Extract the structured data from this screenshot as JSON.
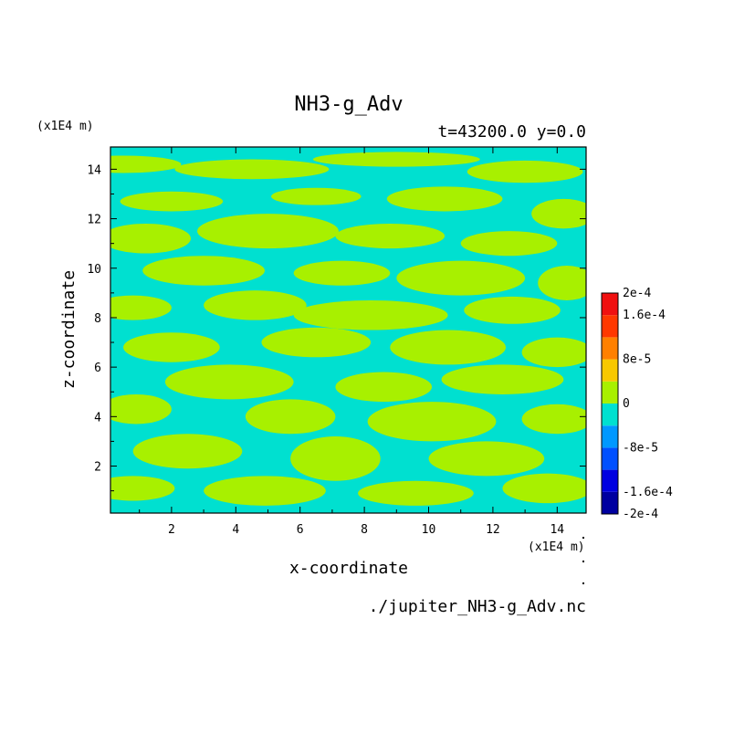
{
  "chart_data": {
    "type": "heatmap",
    "title": "NH3-g_Adv",
    "subtitle": "t=43200.0 y=0.0",
    "xlabel": "x-coordinate",
    "ylabel": "z-coordinate",
    "x_unit": "(x1E4 m)",
    "y_unit": "(x1E4 m)",
    "xlim": [
      0.1,
      14.9
    ],
    "ylim": [
      0.1,
      14.9
    ],
    "x_ticks": [
      "2",
      "4",
      "6",
      "8",
      "10",
      "12",
      "14"
    ],
    "x_tick_values": [
      2,
      4,
      6,
      8,
      10,
      12,
      14
    ],
    "y_ticks": [
      "2",
      "4",
      "6",
      "8",
      "10",
      "12",
      "14"
    ],
    "y_tick_values": [
      2,
      4,
      6,
      8,
      10,
      12,
      14
    ],
    "source": "./jupiter_NH3-g_Adv.nc",
    "colorbar": {
      "levels": [
        -0.0002,
        -0.00016,
        -0.00012,
        -8e-05,
        -4e-05,
        0,
        4e-05,
        8e-05,
        0.00012,
        0.00016,
        0.0002
      ],
      "colors": [
        "#0000a0",
        "#0000e0",
        "#0050ff",
        "#0098ff",
        "#00e0d0",
        "#a8f000",
        "#f8c800",
        "#ff8000",
        "#ff3800",
        "#f01010"
      ],
      "labels": [
        {
          "value": 0.0002,
          "text": "2e-4"
        },
        {
          "value": 0.00016,
          "text": "1.6e-4"
        },
        {
          "value": 8e-05,
          "text": "8e-5"
        },
        {
          "value": 0,
          "text": "0"
        },
        {
          "value": -8e-05,
          "text": "-8e-5"
        },
        {
          "value": -0.00016,
          "text": "-1.6e-4"
        },
        {
          "value": -0.0002,
          "text": "-2e-4"
        }
      ]
    },
    "field_classes": {
      "negative": {
        "range": [
          -4e-05,
          0
        ],
        "color": "#00e0d0"
      },
      "positive": {
        "range": [
          0,
          4e-05
        ],
        "color": "#a8f000"
      }
    },
    "regions_positive": [
      {
        "x": 0.5,
        "z": 14.2,
        "rx": 1.8,
        "ry": 0.35
      },
      {
        "x": 4.5,
        "z": 14.0,
        "rx": 2.4,
        "ry": 0.4
      },
      {
        "x": 9.0,
        "z": 14.4,
        "rx": 2.6,
        "ry": 0.3
      },
      {
        "x": 13.0,
        "z": 13.9,
        "rx": 1.8,
        "ry": 0.45
      },
      {
        "x": 2.0,
        "z": 12.7,
        "rx": 1.6,
        "ry": 0.4
      },
      {
        "x": 6.5,
        "z": 12.9,
        "rx": 1.4,
        "ry": 0.35
      },
      {
        "x": 10.5,
        "z": 12.8,
        "rx": 1.8,
        "ry": 0.5
      },
      {
        "x": 14.2,
        "z": 12.2,
        "rx": 1.0,
        "ry": 0.6
      },
      {
        "x": 1.2,
        "z": 11.2,
        "rx": 1.4,
        "ry": 0.6
      },
      {
        "x": 5.0,
        "z": 11.5,
        "rx": 2.2,
        "ry": 0.7
      },
      {
        "x": 8.8,
        "z": 11.3,
        "rx": 1.7,
        "ry": 0.5
      },
      {
        "x": 12.5,
        "z": 11.0,
        "rx": 1.5,
        "ry": 0.5
      },
      {
        "x": 3.0,
        "z": 9.9,
        "rx": 1.9,
        "ry": 0.6
      },
      {
        "x": 7.3,
        "z": 9.8,
        "rx": 1.5,
        "ry": 0.5
      },
      {
        "x": 11.0,
        "z": 9.6,
        "rx": 2.0,
        "ry": 0.7
      },
      {
        "x": 14.3,
        "z": 9.4,
        "rx": 0.9,
        "ry": 0.7
      },
      {
        "x": 0.8,
        "z": 8.4,
        "rx": 1.2,
        "ry": 0.5
      },
      {
        "x": 4.6,
        "z": 8.5,
        "rx": 1.6,
        "ry": 0.6
      },
      {
        "x": 8.2,
        "z": 8.1,
        "rx": 2.4,
        "ry": 0.6
      },
      {
        "x": 12.6,
        "z": 8.3,
        "rx": 1.5,
        "ry": 0.55
      },
      {
        "x": 2.0,
        "z": 6.8,
        "rx": 1.5,
        "ry": 0.6
      },
      {
        "x": 6.5,
        "z": 7.0,
        "rx": 1.7,
        "ry": 0.6
      },
      {
        "x": 10.6,
        "z": 6.8,
        "rx": 1.8,
        "ry": 0.7
      },
      {
        "x": 14.0,
        "z": 6.6,
        "rx": 1.1,
        "ry": 0.6
      },
      {
        "x": 3.8,
        "z": 5.4,
        "rx": 2.0,
        "ry": 0.7
      },
      {
        "x": 8.6,
        "z": 5.2,
        "rx": 1.5,
        "ry": 0.6
      },
      {
        "x": 12.3,
        "z": 5.5,
        "rx": 1.9,
        "ry": 0.6
      },
      {
        "x": 0.9,
        "z": 4.3,
        "rx": 1.1,
        "ry": 0.6
      },
      {
        "x": 5.7,
        "z": 4.0,
        "rx": 1.4,
        "ry": 0.7
      },
      {
        "x": 10.1,
        "z": 3.8,
        "rx": 2.0,
        "ry": 0.8
      },
      {
        "x": 14.0,
        "z": 3.9,
        "rx": 1.1,
        "ry": 0.6
      },
      {
        "x": 2.5,
        "z": 2.6,
        "rx": 1.7,
        "ry": 0.7
      },
      {
        "x": 7.1,
        "z": 2.3,
        "rx": 1.4,
        "ry": 0.9
      },
      {
        "x": 11.8,
        "z": 2.3,
        "rx": 1.8,
        "ry": 0.7
      },
      {
        "x": 0.8,
        "z": 1.1,
        "rx": 1.3,
        "ry": 0.5
      },
      {
        "x": 4.9,
        "z": 1.0,
        "rx": 1.9,
        "ry": 0.6
      },
      {
        "x": 9.6,
        "z": 0.9,
        "rx": 1.8,
        "ry": 0.5
      },
      {
        "x": 13.7,
        "z": 1.1,
        "rx": 1.4,
        "ry": 0.6
      }
    ]
  }
}
